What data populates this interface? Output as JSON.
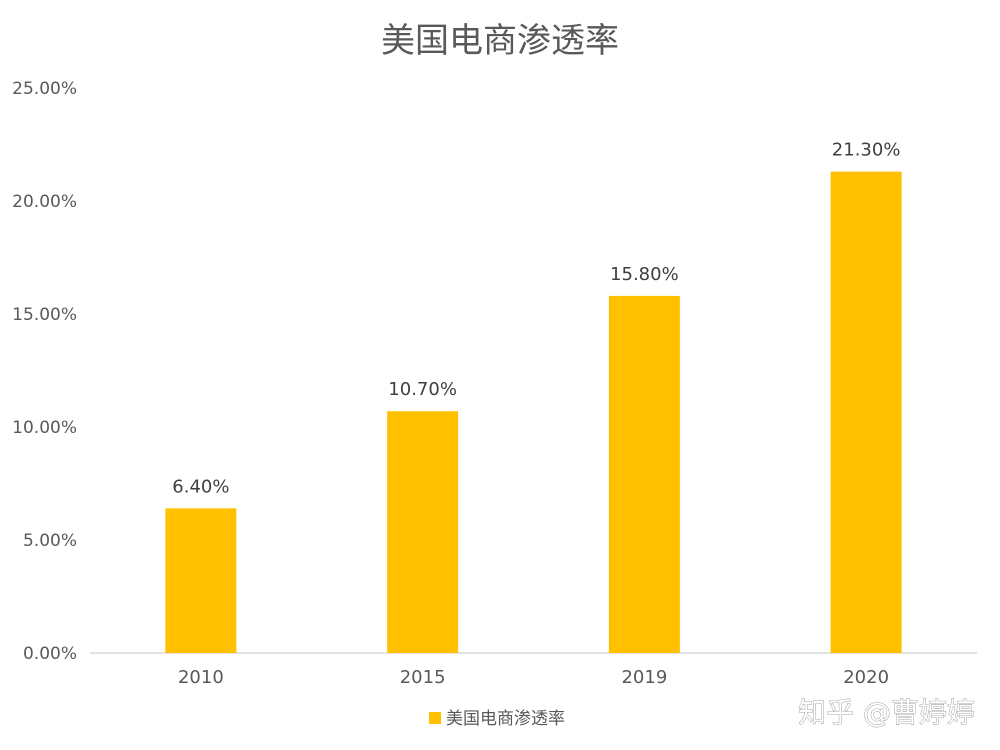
{
  "chart_data": {
    "type": "bar",
    "title": "美国电商渗透率",
    "categories": [
      "2010",
      "2015",
      "2019",
      "2020"
    ],
    "series": [
      {
        "name": "美国电商渗透率",
        "values": [
          6.4,
          10.7,
          15.8,
          21.3
        ],
        "labels": [
          "6.40%",
          "10.70%",
          "15.80%",
          "21.30%"
        ],
        "color": "#FFC000"
      }
    ],
    "ylim": [
      0,
      25
    ],
    "yticks": [
      0,
      5,
      10,
      15,
      20,
      25
    ],
    "ytick_labels": [
      "0.00%",
      "5.00%",
      "10.00%",
      "15.00%",
      "20.00%",
      "25.00%"
    ],
    "grid": false,
    "legend_position": "bottom"
  },
  "watermark": "知乎 @曹婷婷",
  "colors": {
    "bar": "#FFC000",
    "axis_line": "#d9d9d9",
    "text": "#595959"
  }
}
